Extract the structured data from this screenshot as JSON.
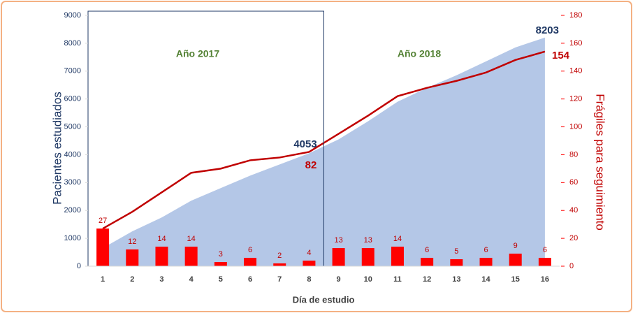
{
  "chart_data": {
    "type": "combo",
    "xlabel": "Día de estudio",
    "ylabel": "Pacientes estudiados",
    "y2label": "Frágiles para seguimiento",
    "categories": [
      "1",
      "2",
      "3",
      "4",
      "5",
      "6",
      "7",
      "8",
      "9",
      "10",
      "11",
      "12",
      "13",
      "14",
      "15",
      "16"
    ],
    "ylim": [
      0,
      9000
    ],
    "yticks": [
      0,
      1000,
      2000,
      3000,
      4000,
      5000,
      6000,
      7000,
      8000,
      9000
    ],
    "y2lim": [
      0,
      180
    ],
    "y2ticks": [
      0,
      20,
      40,
      60,
      80,
      100,
      120,
      140,
      160,
      180
    ],
    "series": [
      {
        "type": "area",
        "axis": "y",
        "color": "#b4c7e7",
        "values": [
          650,
          1250,
          1750,
          2350,
          2800,
          3250,
          3650,
          4053,
          4550,
          5200,
          5900,
          6400,
          6850,
          7350,
          7850,
          8203
        ]
      },
      {
        "type": "line",
        "axis": "y2",
        "color": "#c00000",
        "values": [
          27,
          39,
          53,
          67,
          70,
          76,
          78,
          82,
          95,
          108,
          122,
          128,
          133,
          139,
          148,
          154
        ]
      },
      {
        "type": "bar",
        "axis": "y2",
        "color": "#ff0000",
        "values": [
          27,
          12,
          14,
          14,
          3,
          6,
          2,
          4,
          13,
          13,
          14,
          6,
          5,
          6,
          9,
          6
        ]
      }
    ],
    "annotations": [
      "Año 2017",
      "Año 2018",
      "4053",
      "82",
      "8203",
      "154"
    ]
  }
}
